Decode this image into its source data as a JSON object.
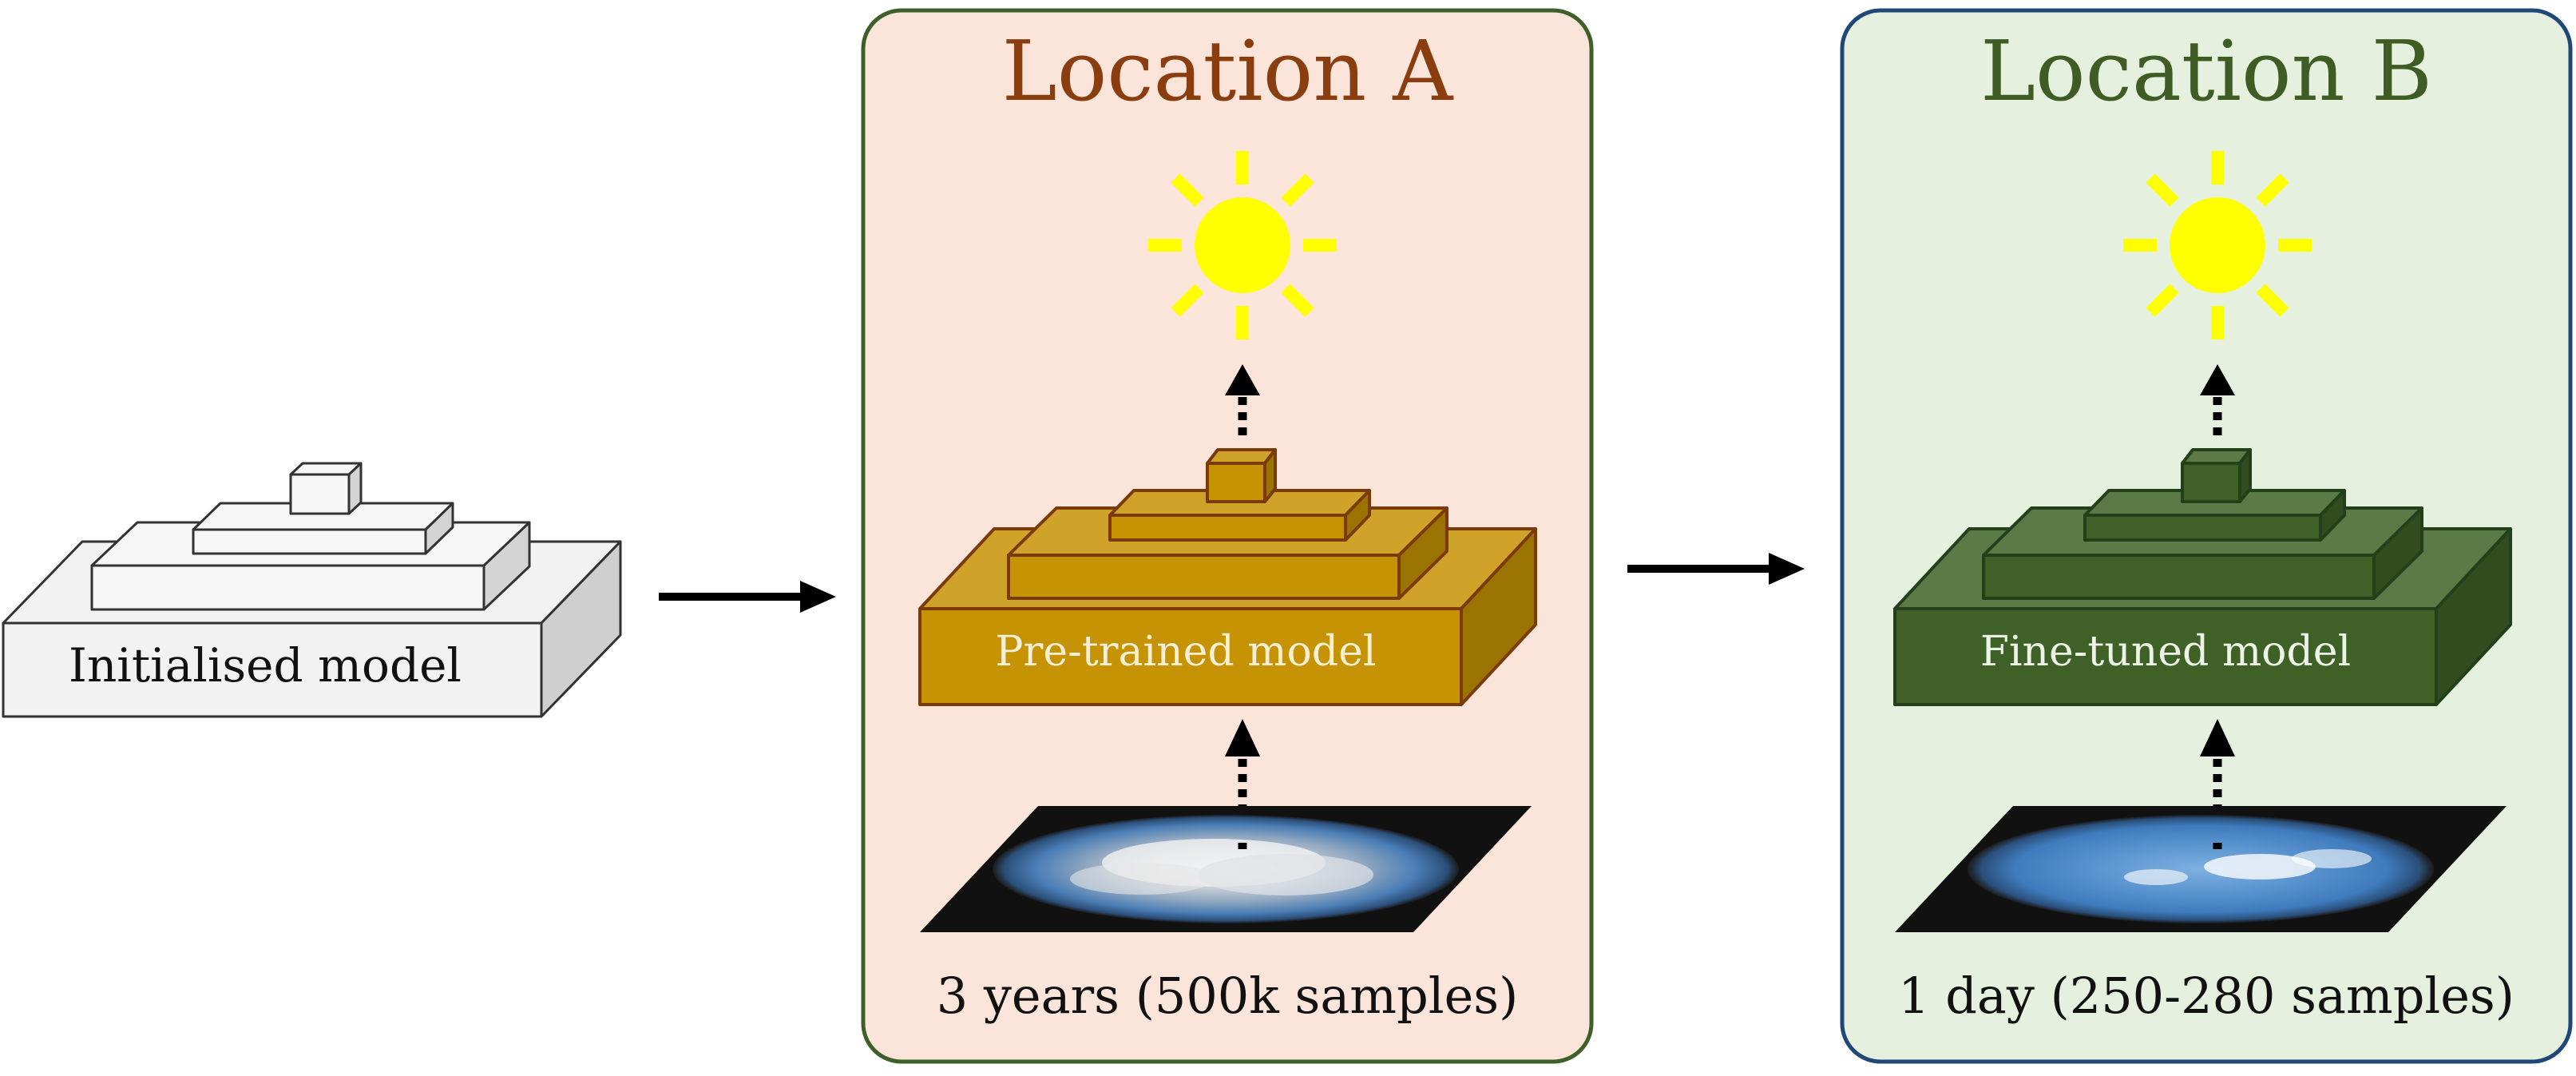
{
  "init_model": {
    "label": "Initialised model"
  },
  "panel_a": {
    "title": "Location A",
    "model_label": "Pre-trained model",
    "data_label": "3 years (500k samples)",
    "bg_color": "#fbe5da",
    "border_color": "#3f5f2a",
    "title_color": "#8a3e10",
    "model_color": "#c69304"
  },
  "panel_b": {
    "title": "Location B",
    "model_label": "Fine-tuned model",
    "data_label": "1 day (250-280 samples)",
    "bg_color": "#e5f1de",
    "border_color": "#1f4878",
    "title_color": "#3e5c24",
    "model_color": "#3f6128"
  },
  "icons": {
    "sun": "sun-icon",
    "sky_image": "all-sky-camera-image",
    "arrow": "arrow-right-icon",
    "dotted_arrow": "dotted-arrow-up-icon"
  }
}
